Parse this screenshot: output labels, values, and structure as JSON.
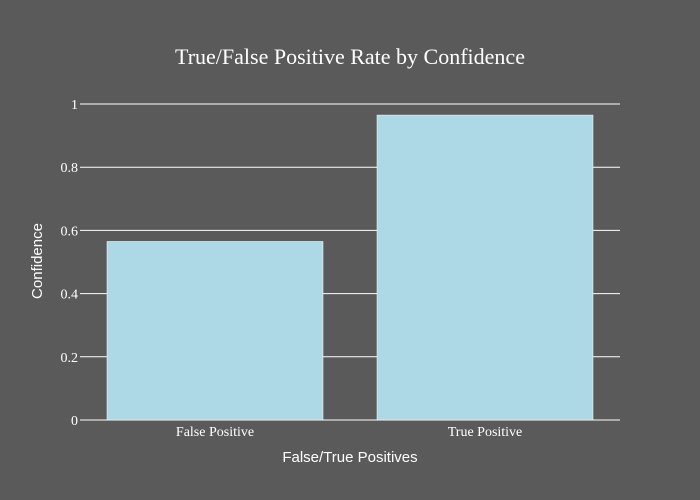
{
  "chart_data": {
    "type": "bar",
    "title": "True/False Positive Rate by Confidence",
    "xlabel": "False/True Positives",
    "ylabel": "Confidence",
    "categories": [
      "False Positive",
      "True Positive"
    ],
    "values": [
      0.565,
      0.965
    ],
    "ylim": [
      0,
      1
    ],
    "yticks": [
      0,
      0.2,
      0.4,
      0.6,
      0.8,
      1
    ],
    "ytick_labels": [
      "0",
      "0.2",
      "0.4",
      "0.6",
      "0.8",
      "1"
    ],
    "grid": true,
    "legend": false,
    "colors": {
      "background": "#5a5a5a",
      "bar": "#add8e6",
      "text": "#ffffff",
      "grid": "#ffffff"
    }
  }
}
